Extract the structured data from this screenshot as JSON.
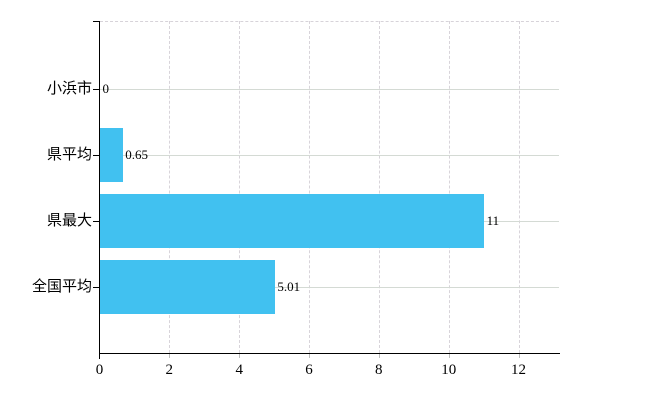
{
  "chart_data": {
    "type": "bar",
    "orientation": "horizontal",
    "title": "",
    "xlabel": "",
    "ylabel": "",
    "categories": [
      "小浜市",
      "県平均",
      "県最大",
      "全国平均"
    ],
    "values": [
      0,
      0.65,
      11,
      5.01
    ],
    "value_labels": [
      "0",
      "0.65",
      "11",
      "5.01"
    ],
    "x_ticks": [
      0,
      2,
      4,
      6,
      8,
      10,
      12
    ],
    "x_tick_labels": [
      "0",
      "2",
      "4",
      "6",
      "8",
      "10",
      "12"
    ],
    "xlim": [
      0,
      13.2
    ],
    "grid": true,
    "gridline_style": {
      "horizontal": "solid",
      "vertical": "dashed",
      "plot_top_border": "dashed"
    },
    "legend": "none"
  },
  "colors": {
    "bar": "#41C1F0",
    "axis": "#000000",
    "grid_horizontal": "#d4dad4",
    "grid_vertical": "#d8d4da",
    "background": "#ffffff",
    "text": "#000000"
  }
}
